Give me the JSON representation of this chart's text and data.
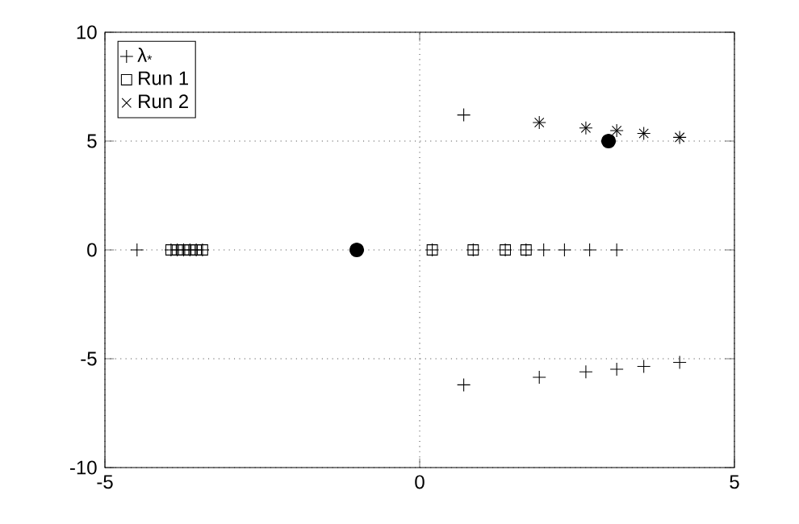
{
  "chart_data": {
    "type": "scatter",
    "xlim": [
      -5,
      5
    ],
    "ylim": [
      -10,
      10
    ],
    "xticks": [
      -5,
      0,
      5
    ],
    "yticks": [
      -10,
      -5,
      0,
      5,
      10
    ],
    "grid": true,
    "legend": "top left",
    "series": [
      {
        "name": "λ$_{*}$",
        "color": "#000000",
        "marker": "plus",
        "x": [
          -4.49,
          -3.95,
          -3.85,
          -3.75,
          -3.65,
          -3.55,
          -3.45,
          0.2,
          0.85,
          1.36,
          1.69,
          1.97,
          2.3,
          2.7,
          3.13,
          0.7,
          1.9,
          2.64,
          3.13,
          3.56,
          4.13,
          0.7,
          1.9,
          2.64,
          3.13,
          3.56,
          4.13
        ],
        "values": [
          0,
          0,
          0,
          0,
          0,
          0,
          0,
          0,
          0,
          0,
          0,
          0,
          0,
          0,
          0,
          6.2,
          5.85,
          5.6,
          5.48,
          5.35,
          5.17,
          -6.2,
          -5.85,
          -5.6,
          -5.48,
          -5.35,
          -5.17
        ]
      },
      {
        "name": "Run 1",
        "color": "#000000",
        "marker": "square",
        "x": [
          -3.95,
          -3.85,
          -3.75,
          -3.65,
          -3.55,
          -3.45,
          0.2,
          0.85,
          1.36,
          1.69
        ],
        "values": [
          0,
          0,
          0,
          0,
          0,
          0,
          0,
          0,
          0,
          0
        ]
      },
      {
        "name": "Run 2",
        "color": "#000000",
        "marker": "cross",
        "x": [
          1.9,
          2.64,
          3.13,
          3.56,
          4.13
        ],
        "values": [
          5.85,
          5.6,
          5.48,
          5.35,
          5.17
        ]
      },
      {
        "color": "#000000",
        "marker": "circle",
        "x": [
          -1,
          3
        ],
        "values": [
          0,
          5
        ]
      }
    ]
  }
}
